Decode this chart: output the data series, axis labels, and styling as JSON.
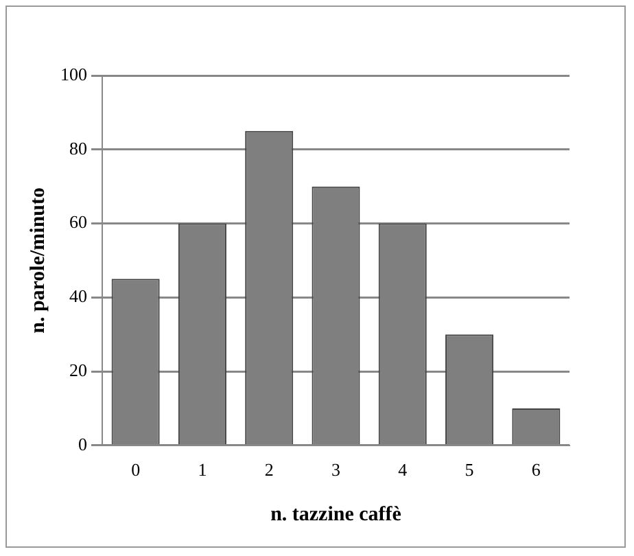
{
  "chart_data": {
    "type": "bar",
    "xlabel": "n. tazzine caffè",
    "ylabel": "n. parole/minuto",
    "categories": [
      "0",
      "1",
      "2",
      "3",
      "4",
      "5",
      "6"
    ],
    "values": [
      45,
      60,
      85,
      70,
      60,
      30,
      10
    ],
    "color": "#7f7f7f",
    "ylim": [
      0,
      100
    ],
    "yticks": [
      0,
      20,
      40,
      60,
      80,
      100
    ],
    "grid": "y",
    "legend": false
  }
}
